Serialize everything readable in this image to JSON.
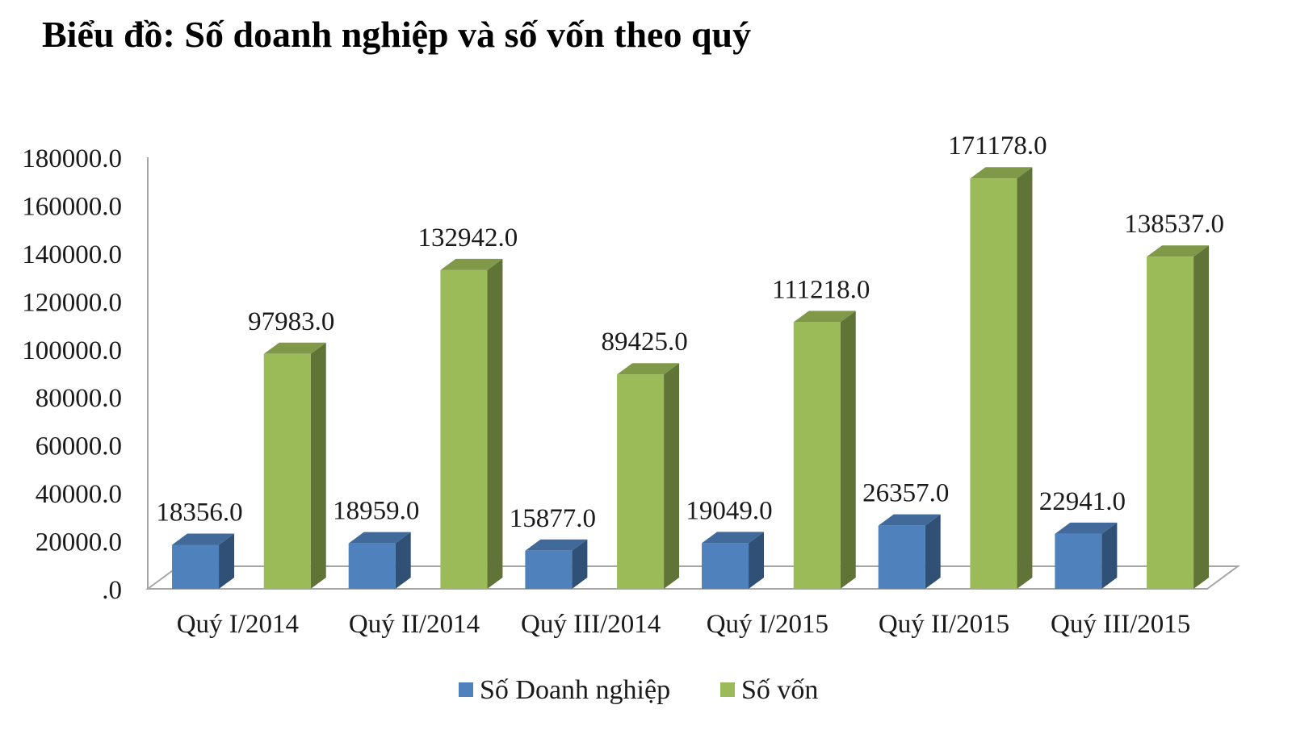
{
  "title": "Biểu đồ: Số doanh nghiệp và số vốn theo quý",
  "chart_data": {
    "type": "bar",
    "title": "Biểu đồ: Số doanh nghiệp và số vốn theo quý",
    "xlabel": "",
    "ylabel": "",
    "ylim": [
      0,
      180000
    ],
    "ytick_labels": [
      ".0",
      "20000.0",
      "40000.0",
      "60000.0",
      "80000.0",
      "100000.0",
      "120000.0",
      "140000.0",
      "160000.0",
      "180000.0"
    ],
    "categories": [
      "Quý I/2014",
      "Quý II/2014",
      "Quý III/2014",
      "Quý I/2015",
      "Quý II/2015",
      "Quý III/2015"
    ],
    "series": [
      {
        "name": "Số Doanh nghiệp",
        "color": "#4F81BD",
        "values": [
          18356.0,
          18959.0,
          15877.0,
          19049.0,
          26357.0,
          22941.0
        ],
        "labels": [
          "18356.0",
          "18959.0",
          "15877.0",
          "19049.0",
          "26357.0",
          "22941.0"
        ]
      },
      {
        "name": "Số vốn",
        "color": "#9BBB59",
        "values": [
          97983.0,
          132942.0,
          89425.0,
          111218.0,
          171178.0,
          138537.0
        ],
        "labels": [
          "97983.0",
          "132942.0",
          "89425.0",
          "111218.0",
          "171178.0",
          "138537.0"
        ]
      }
    ],
    "legend": "bottom",
    "grid": false
  }
}
